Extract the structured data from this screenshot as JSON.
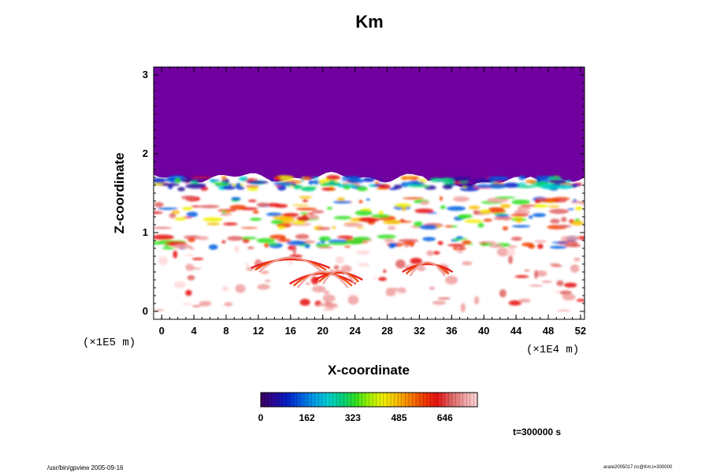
{
  "chart_data": {
    "type": "heatmap",
    "title": "Km",
    "xlabel": "X-coordinate",
    "ylabel": "Z-coordinate",
    "x_ticks": [
      "0",
      "4",
      "8",
      "12",
      "16",
      "20",
      "24",
      "28",
      "32",
      "36",
      "40",
      "44",
      "48",
      "52"
    ],
    "y_ticks": [
      "0",
      "1",
      "2",
      "3"
    ],
    "xlim": [
      -1,
      52.5
    ],
    "ylim": [
      -0.1,
      3.1
    ],
    "x_scale_label": "(×1E4 m)",
    "y_scale_label": "(×1E5 m)",
    "colorbar": {
      "ticks": [
        "0",
        "162",
        "323",
        "485",
        "646"
      ],
      "tick_values": [
        0,
        162,
        323,
        485,
        646
      ],
      "max": 760,
      "colors": [
        "#3a0060",
        "#2a0a9a",
        "#0020c8",
        "#0060e0",
        "#00a0e8",
        "#00d0d0",
        "#00d080",
        "#30e020",
        "#a0f000",
        "#f0f000",
        "#f8c000",
        "#f88000",
        "#f04000",
        "#e81010",
        "#e06060",
        "#f0a0a0",
        "#ffd8d8"
      ]
    },
    "regions": {
      "upper_fill_color": "#7000a0",
      "upper_region_bottom_z": 1.7,
      "zones": [
        {
          "z_from": 1.55,
          "z_to": 1.7,
          "description_level": "high"
        },
        {
          "z_from": 1.05,
          "z_to": 1.45,
          "description_level": "medium-high"
        },
        {
          "z_from": 0.8,
          "z_to": 0.95,
          "description_level": "medium"
        },
        {
          "z_from": 0.0,
          "z_to": 0.8,
          "description_level": "low"
        }
      ]
    }
  },
  "footer": {
    "time_label": "t=300000 s",
    "left_note": "/usr/bin/gpview 2005-09-16",
    "right_note": "arare2005017.nc@Km,t=300000"
  }
}
